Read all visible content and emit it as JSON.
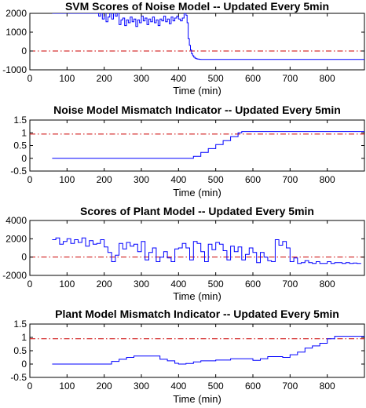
{
  "chart_data": [
    {
      "type": "line",
      "title": "SVM Scores of Noise Model -- Updated Every 5min",
      "xlabel": "Time (min)",
      "ylabel": "",
      "xlim": [
        0,
        900
      ],
      "ylim": [
        -1000,
        2000
      ],
      "xticks": [
        0,
        100,
        200,
        300,
        400,
        500,
        600,
        700,
        800
      ],
      "yticks": [
        -1000,
        0,
        1000,
        2000
      ],
      "threshold": {
        "y": 0,
        "color": "#cc0000",
        "style": "dash-dot"
      },
      "series": [
        {
          "color": "#0000ff",
          "x": [
            60,
            180,
            185,
            190,
            195,
            200,
            205,
            210,
            215,
            220,
            225,
            230,
            235,
            240,
            245,
            250,
            255,
            260,
            265,
            270,
            275,
            280,
            285,
            290,
            295,
            300,
            305,
            310,
            315,
            320,
            325,
            330,
            335,
            340,
            345,
            350,
            355,
            360,
            365,
            370,
            375,
            380,
            385,
            390,
            395,
            400,
            405,
            410,
            415,
            420,
            423,
            426,
            429,
            432,
            435,
            438,
            441,
            444,
            447,
            450,
            455,
            460,
            470,
            480,
            500,
            550,
            600,
            650,
            700,
            750,
            800,
            850,
            900
          ],
          "y": [
            2000,
            2000,
            1850,
            2000,
            1700,
            2000,
            1550,
            1800,
            2000,
            1700,
            2000,
            1850,
            2000,
            1400,
            1650,
            1750,
            1350,
            1650,
            1500,
            1800,
            1550,
            1700,
            1300,
            1650,
            1500,
            1850,
            1600,
            1750,
            1400,
            1700,
            1550,
            1800,
            1500,
            1650,
            1350,
            1700,
            1600,
            1850,
            1550,
            1700,
            1450,
            1800,
            1600,
            1750,
            1850,
            1700,
            1600,
            1750,
            2000,
            1900,
            1500,
            650,
            300,
            50,
            -150,
            -250,
            -330,
            -380,
            -410,
            -430,
            -440,
            -445,
            -450,
            -450,
            -450,
            -450,
            -450,
            -450,
            -450,
            -450,
            -450,
            -450,
            -450
          ]
        }
      ]
    },
    {
      "type": "line",
      "title": "Noise Model Mismatch Indicator -- Updated Every 5min",
      "xlabel": "Time (min)",
      "ylabel": "",
      "xlim": [
        0,
        900
      ],
      "ylim": [
        -0.5,
        1.5
      ],
      "xticks": [
        0,
        100,
        200,
        300,
        400,
        500,
        600,
        700,
        800
      ],
      "yticks": [
        -0.5,
        0,
        0.5,
        1,
        1.5
      ],
      "threshold": {
        "y": 0.95,
        "color": "#cc0000",
        "style": "dash-dot"
      },
      "series": [
        {
          "color": "#0000ff",
          "x": [
            60,
            430,
            440,
            460,
            480,
            500,
            520,
            540,
            560,
            570,
            900
          ],
          "y": [
            0,
            0,
            0.08,
            0.23,
            0.38,
            0.54,
            0.69,
            0.85,
            1.0,
            1.05,
            1.05
          ]
        }
      ]
    },
    {
      "type": "line",
      "title": "Scores of Plant Model -- Updated Every 5min",
      "xlabel": "Time (min)",
      "ylabel": "",
      "xlim": [
        0,
        900
      ],
      "ylim": [
        -2000,
        4000
      ],
      "xticks": [
        0,
        100,
        200,
        300,
        400,
        500,
        600,
        700,
        800
      ],
      "yticks": [
        -2000,
        0,
        2000,
        4000
      ],
      "threshold": {
        "y": 0,
        "color": "#cc0000",
        "style": "dash-dot"
      },
      "series": [
        {
          "color": "#0000ff",
          "x": [
            60,
            70,
            80,
            90,
            100,
            110,
            120,
            130,
            140,
            150,
            160,
            170,
            180,
            190,
            200,
            210,
            220,
            230,
            240,
            250,
            260,
            270,
            280,
            290,
            300,
            310,
            320,
            330,
            340,
            350,
            360,
            370,
            380,
            390,
            400,
            410,
            420,
            430,
            440,
            450,
            460,
            470,
            480,
            490,
            500,
            510,
            520,
            530,
            540,
            550,
            560,
            570,
            580,
            590,
            600,
            610,
            620,
            630,
            640,
            650,
            660,
            670,
            680,
            690,
            700,
            710,
            720,
            730,
            740,
            750,
            760,
            770,
            780,
            790,
            800,
            810,
            820,
            830,
            840,
            850,
            860,
            870,
            880,
            890
          ],
          "y": [
            1900,
            2100,
            1400,
            1700,
            2000,
            1500,
            1900,
            1600,
            2100,
            1200,
            1800,
            1400,
            1500,
            1900,
            1100,
            500,
            -500,
            200,
            1500,
            900,
            1600,
            1200,
            1400,
            600,
            1700,
            -300,
            500,
            1000,
            -500,
            0,
            600,
            -100,
            -500,
            900,
            1000,
            1500,
            1000,
            -300,
            1700,
            1500,
            600,
            -500,
            1400,
            800,
            1600,
            1400,
            700,
            -300,
            1200,
            600,
            1100,
            -300,
            300,
            1000,
            500,
            -600,
            500,
            0,
            -400,
            -500,
            1900,
            1300,
            1700,
            1000,
            -500,
            -100,
            -700,
            -600,
            -400,
            -600,
            -700,
            -500,
            -700,
            -700,
            -500,
            -700,
            -600,
            -600,
            -700,
            -600,
            -700,
            -650,
            -700,
            -650
          ]
        }
      ]
    },
    {
      "type": "line",
      "title": "Plant Model Mismatch Indicator -- Updated Every 5min",
      "xlabel": "Time (min)",
      "ylabel": "",
      "xlim": [
        0,
        900
      ],
      "ylim": [
        -0.5,
        1.5
      ],
      "xticks": [
        0,
        100,
        200,
        300,
        400,
        500,
        600,
        700,
        800
      ],
      "yticks": [
        -0.5,
        0,
        0.5,
        1,
        1.5
      ],
      "threshold": {
        "y": 0.95,
        "color": "#cc0000",
        "style": "dash-dot"
      },
      "series": [
        {
          "color": "#0000ff",
          "x": [
            60,
            200,
            220,
            240,
            260,
            280,
            300,
            330,
            350,
            370,
            390,
            400,
            420,
            440,
            460,
            480,
            500,
            540,
            580,
            600,
            620,
            640,
            660,
            680,
            700,
            720,
            740,
            760,
            780,
            800,
            820,
            900
          ],
          "y": [
            0,
            0,
            0.1,
            0.18,
            0.25,
            0.3,
            0.3,
            0.3,
            0.18,
            0.12,
            0.03,
            0,
            0.02,
            0.08,
            0.12,
            0.12,
            0.15,
            0.2,
            0.2,
            0.14,
            0.2,
            0.28,
            0.28,
            0.25,
            0.35,
            0.45,
            0.6,
            0.68,
            0.78,
            0.95,
            1.04,
            1.04
          ]
        }
      ]
    }
  ]
}
